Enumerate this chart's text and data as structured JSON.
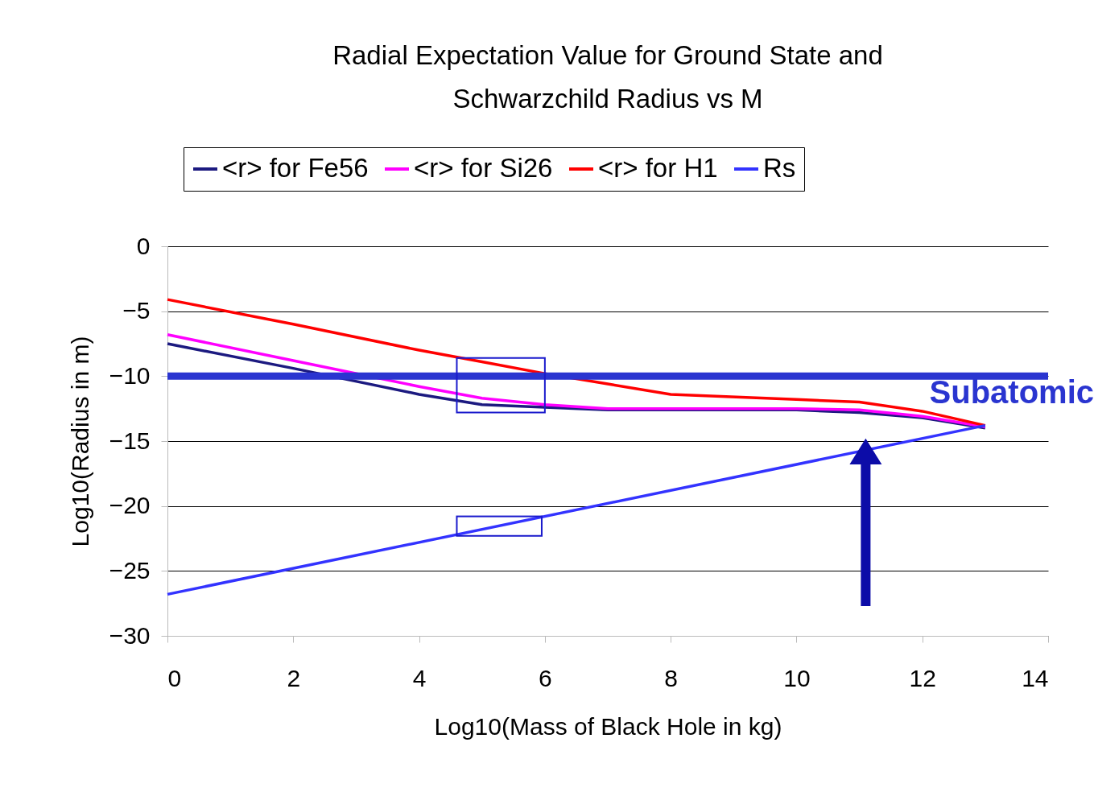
{
  "chart_data": {
    "type": "line",
    "title": [
      "Radial Expectation Value for Ground State and",
      "Schwarzchild Radius vs M"
    ],
    "xlabel": "Log10(Mass of Black Hole in kg)",
    "ylabel": "Log10(Radius in m)",
    "x": [
      0,
      2,
      4,
      5,
      6,
      7,
      8,
      10,
      11,
      12,
      13
    ],
    "series": [
      {
        "name": "<r> for Fe56",
        "color": "#1c1a80",
        "values": [
          -7.5,
          -9.4,
          -11.4,
          -12.2,
          -12.4,
          -12.6,
          -12.6,
          -12.6,
          -12.8,
          -13.2,
          -14.0
        ]
      },
      {
        "name": "<r> for Si26",
        "color": "#ff00ff",
        "values": [
          -6.8,
          -8.8,
          -10.8,
          -11.7,
          -12.2,
          -12.5,
          -12.5,
          -12.5,
          -12.6,
          -13.1,
          -13.9
        ]
      },
      {
        "name": "<r> for H1",
        "color": "#ff0000",
        "values": [
          -4.1,
          -6.0,
          -8.0,
          -8.9,
          -9.8,
          -10.6,
          -11.4,
          -11.8,
          -12.0,
          -12.7,
          -13.8
        ]
      },
      {
        "name": "Rs",
        "color": "#3333ff",
        "x": [
          0,
          13
        ],
        "values": [
          -26.8,
          -13.8
        ]
      }
    ],
    "xlim": [
      0,
      14
    ],
    "xticks": [
      0,
      2,
      4,
      6,
      8,
      10,
      12,
      14
    ],
    "ylim": [
      -30,
      0
    ],
    "yticks": [
      -30,
      -25,
      -20,
      -15,
      -10,
      -5,
      0
    ],
    "grid": "y",
    "legend": "top",
    "ref_lines": [
      {
        "axis": "y",
        "value": -10,
        "label": "Subatomic",
        "color": "#2a35d0"
      }
    ]
  }
}
